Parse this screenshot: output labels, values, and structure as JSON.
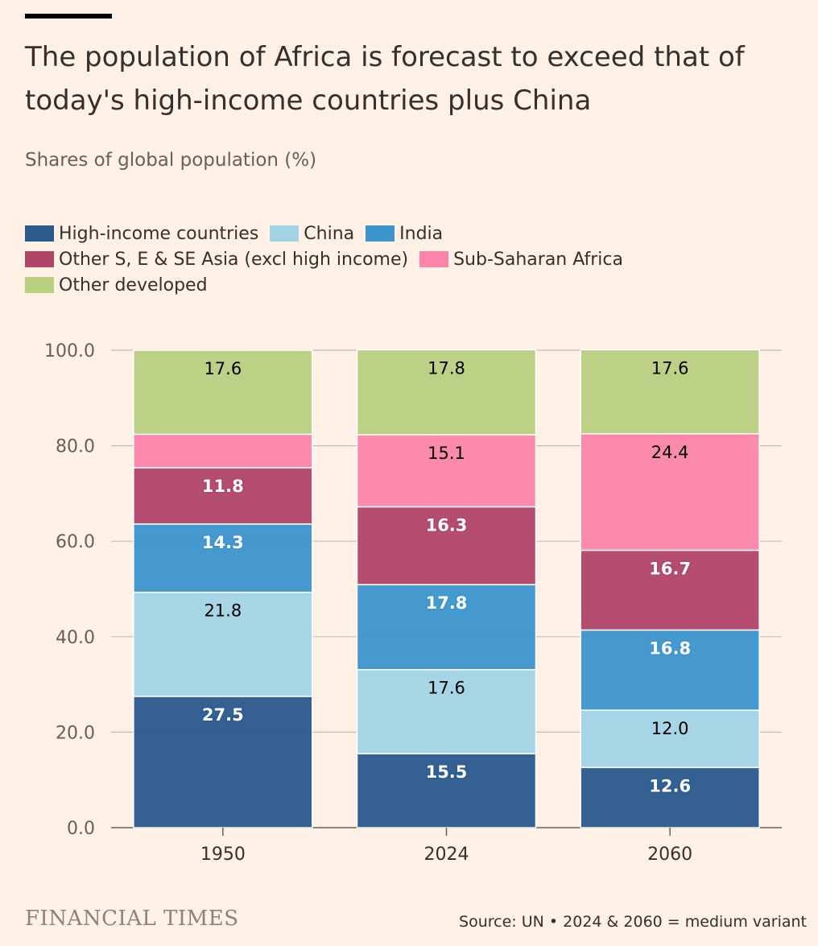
{
  "header": {
    "title": "The population of Africa is forecast to exceed that of today's high-income countries plus China",
    "subtitle": "Shares of global population (%)"
  },
  "footer": {
    "brand": "FINANCIAL TIMES",
    "source": "Source: UN • 2024 & 2060 = medium variant"
  },
  "chart_data": {
    "type": "bar",
    "stacked": true,
    "categories": [
      "1950",
      "2024",
      "2060"
    ],
    "series": [
      {
        "name": "High-income countries",
        "color": "#2a5a8e",
        "label_color": "#ffffff",
        "values": [
          27.5,
          15.5,
          12.6
        ],
        "labels": [
          "27.5",
          "15.5",
          "12.6"
        ]
      },
      {
        "name": "China",
        "color": "#a2d4e6",
        "label_color": "#000000",
        "values": [
          21.8,
          17.6,
          12.0
        ],
        "labels": [
          "21.8",
          "17.6",
          "12.0"
        ]
      },
      {
        "name": "India",
        "color": "#3d95cd",
        "label_color": "#ffffff",
        "values": [
          14.3,
          17.8,
          16.8
        ],
        "labels": [
          "14.3",
          "17.8",
          "16.8"
        ]
      },
      {
        "name": "Other S, E & SE Asia (excl high income)",
        "color": "#b0456a",
        "label_color": "#ffffff",
        "values": [
          11.8,
          16.3,
          16.7
        ],
        "labels": [
          "11.8",
          "16.3",
          "16.7"
        ]
      },
      {
        "name": "Sub-Saharan Africa",
        "color": "#fb85aa",
        "label_color": "#000000",
        "values": [
          7.0,
          15.1,
          24.4
        ],
        "labels": [
          "",
          "15.1",
          "24.4"
        ]
      },
      {
        "name": "Other developed",
        "color": "#b9d080",
        "label_color": "#000000",
        "values": [
          17.6,
          17.8,
          17.6
        ],
        "labels": [
          "17.6",
          "17.8",
          "17.6"
        ]
      }
    ],
    "legend_rows": [
      [
        0,
        1,
        2
      ],
      [
        3,
        4
      ],
      [
        5
      ]
    ],
    "ylim": [
      0,
      100
    ],
    "yticks": [
      0,
      20,
      40,
      60,
      80,
      100
    ],
    "ytick_labels": [
      "0.0",
      "20.0",
      "40.0",
      "60.0",
      "80.0",
      "100.0"
    ],
    "title": "The population of Africa is forecast to exceed that of today's high-income countries plus China",
    "ylabel": "Shares of global population (%)",
    "xlabel": ""
  }
}
